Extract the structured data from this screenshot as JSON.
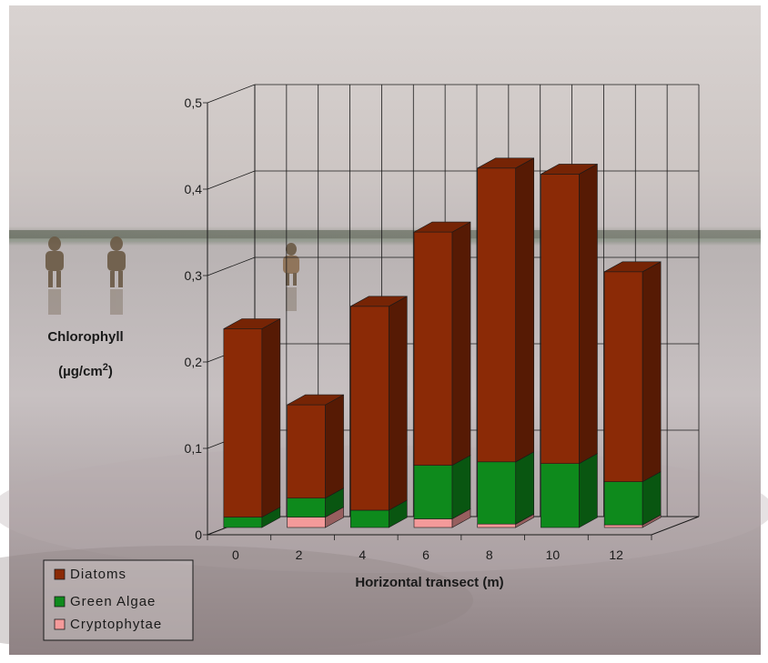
{
  "chart_data": {
    "type": "bar",
    "stacked": true,
    "view": "3d",
    "categories": [
      "0",
      "2",
      "4",
      "6",
      "8",
      "10",
      "12"
    ],
    "series": [
      {
        "name": "Cryptophytae",
        "values": [
          0.0,
          0.012,
          0.0,
          0.01,
          0.004,
          0.0,
          0.003
        ]
      },
      {
        "name": "Green Algae",
        "values": [
          0.012,
          0.022,
          0.02,
          0.062,
          0.072,
          0.074,
          0.05
        ]
      },
      {
        "name": "Diatoms",
        "values": [
          0.218,
          0.108,
          0.236,
          0.27,
          0.34,
          0.335,
          0.243
        ]
      }
    ],
    "colors": {
      "Diatoms": "#8b2a06",
      "Green Algae": "#0e8a1c",
      "Cryptophytae": "#f49a9a"
    },
    "legend_order": [
      "Diatoms",
      "Green Algae",
      "Cryptophytae"
    ],
    "legend_position": "bottom-left",
    "ylim": [
      0,
      0.5
    ],
    "yticks": [
      "0",
      "0,1",
      "0,2",
      "0,3",
      "0,4",
      "0,5"
    ],
    "xlabel": "Horizontal transect (m)",
    "ylabel_line1": "Chlorophyll",
    "ylabel_line2": "(µg/cm",
    "ylabel_sup": "2",
    "ylabel_close": ")",
    "grid": true,
    "background": "photo of tidal flat with people standing in shallow water"
  }
}
